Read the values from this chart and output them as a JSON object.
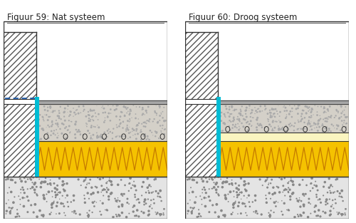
{
  "title_left": "Figuur 59: Nat systeem",
  "title_right": "Figuur 60: Droog systeem",
  "bg_color": "#ffffff",
  "cyan_color": "#00bcd4",
  "blue_dashed_color": "#1e5baa",
  "insulation_yellow": "#f5c200",
  "insulation_zigzag": "#c47a00",
  "board_light": "#faf5c0",
  "screed_color": "#d4d0c8",
  "concrete_color": "#e4e4e4",
  "dark_strip_color": "#a0a0a0",
  "wall_hatch_color": "#666666",
  "title_fontsize": 8.5
}
